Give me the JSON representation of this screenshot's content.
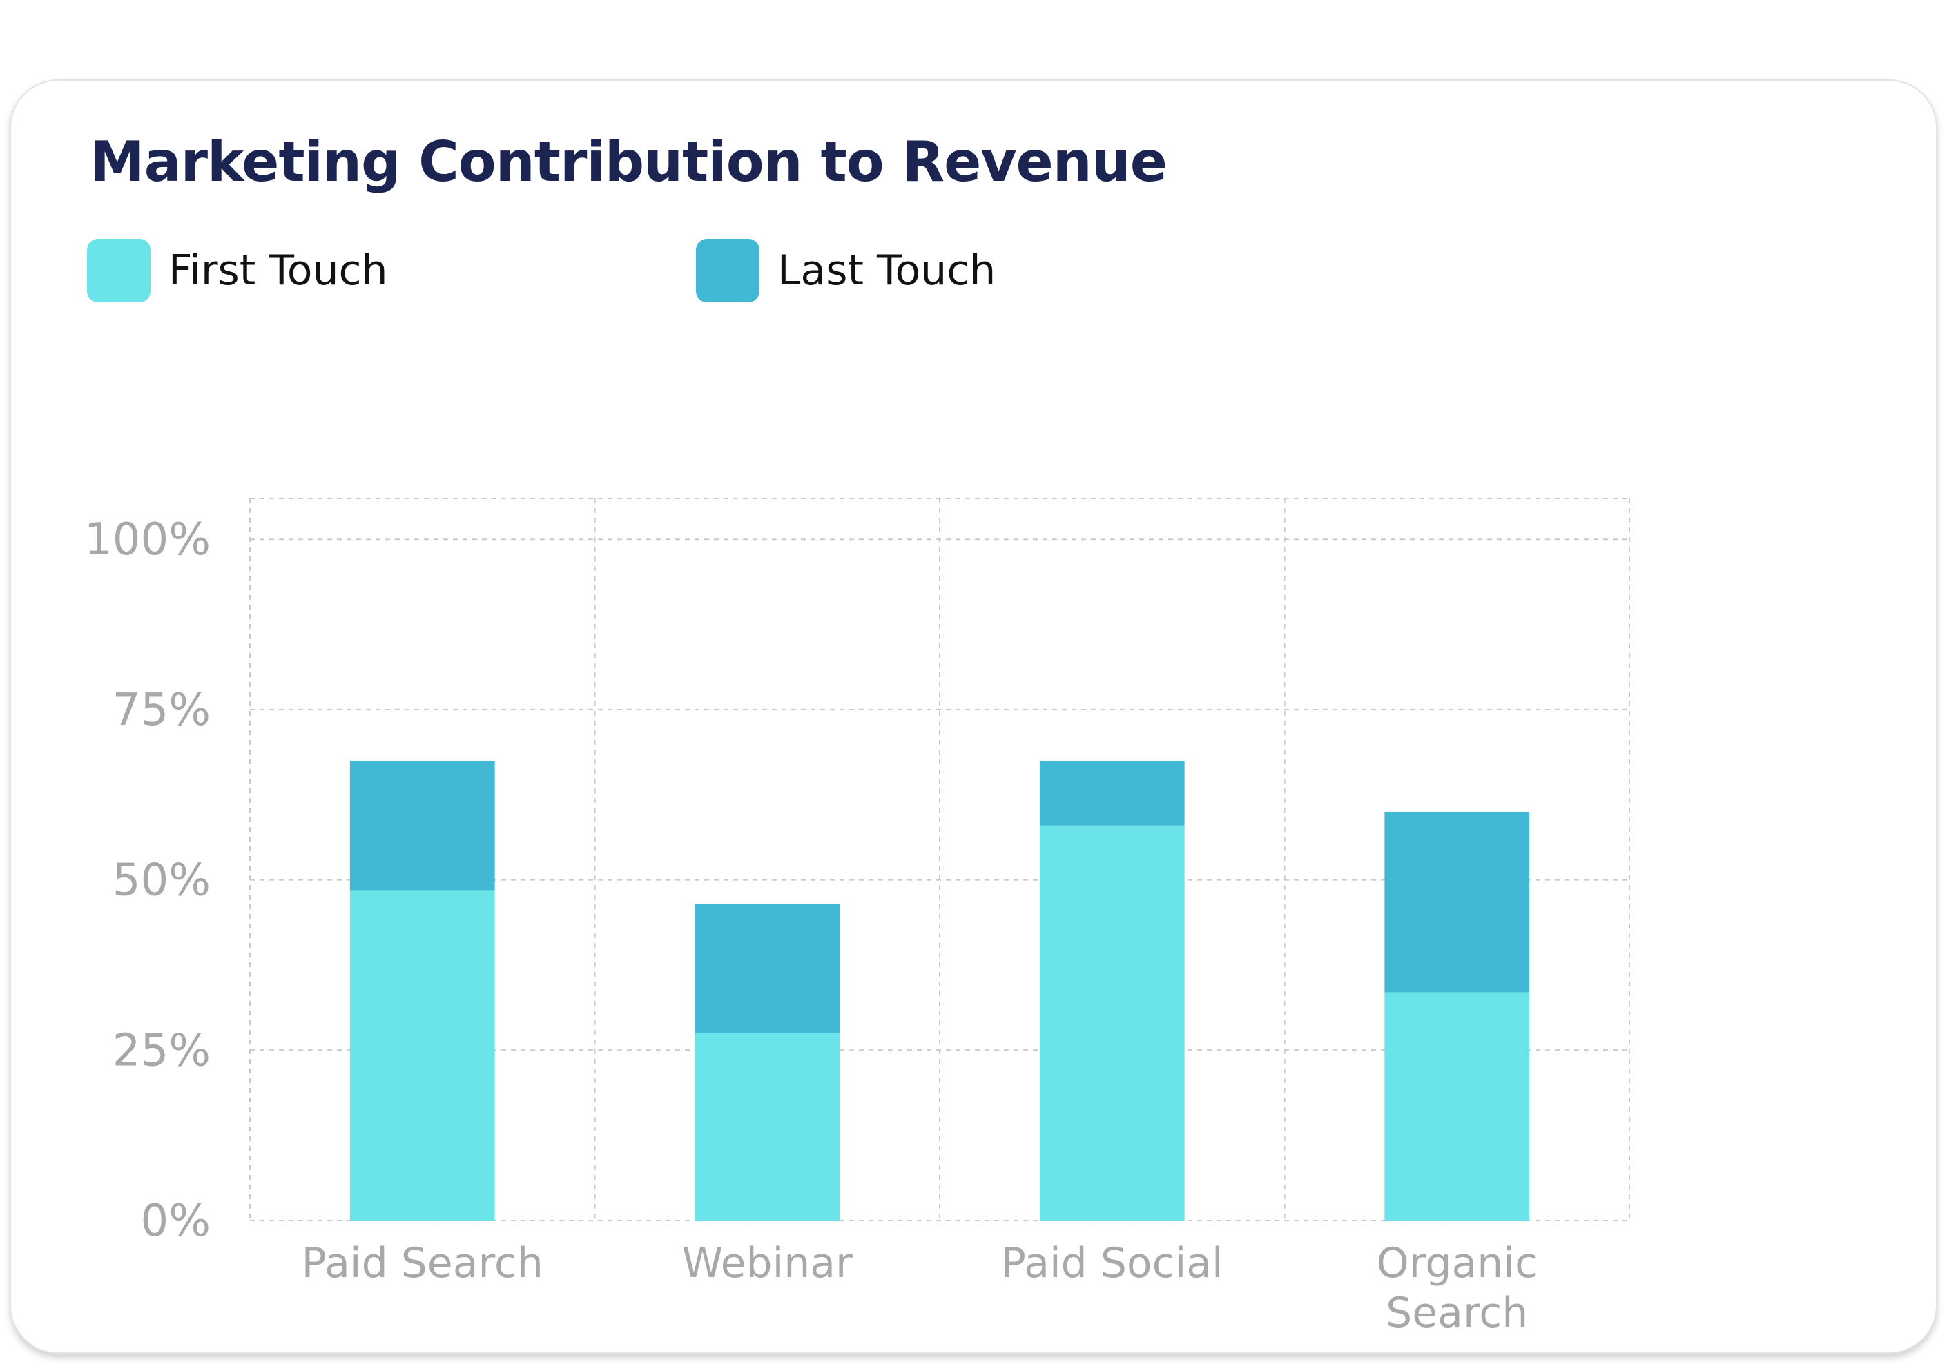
{
  "chart_data": {
    "type": "bar",
    "stacked": true,
    "title": "Marketing Contribution to Revenue",
    "categories": [
      "Paid Search",
      "Webinar",
      "Paid Social",
      "Organic Search"
    ],
    "series": [
      {
        "name": "First Touch",
        "color": "#6ae4e8",
        "values": [
          48.5,
          27.5,
          58,
          33.5
        ]
      },
      {
        "name": "Last Touch",
        "color": "#41b9d5",
        "values": [
          19,
          19,
          9.5,
          26.5
        ]
      }
    ],
    "ylim": [
      0,
      106
    ],
    "yticks": [
      0,
      25,
      50,
      75,
      100
    ],
    "ytick_labels": [
      "0%",
      "25%",
      "50%",
      "75%",
      "100%"
    ],
    "xlabel": "",
    "ylabel": "",
    "grid": true,
    "legend_position": "top-left"
  }
}
